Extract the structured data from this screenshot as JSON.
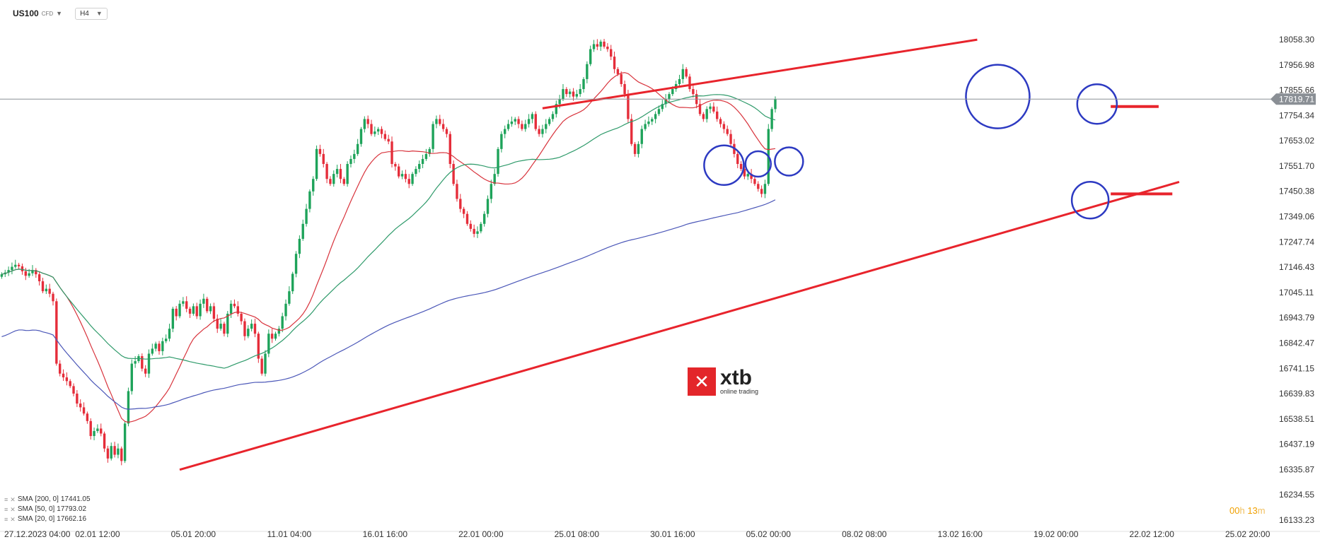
{
  "toolbar": {
    "symbol": "US100",
    "symbol_type": "CFD",
    "timeframe": "H4"
  },
  "legend": [
    {
      "name": "SMA",
      "params": "[200,  0]",
      "value": "17441.05"
    },
    {
      "name": "SMA",
      "params": "[50,  0]",
      "value": "17793.02"
    },
    {
      "name": "SMA",
      "params": "[20,  0]",
      "value": "17662.16"
    }
  ],
  "logo": {
    "name": "xtb",
    "tagline": "online trading"
  },
  "timer": {
    "hours": "00",
    "h_unit": "h",
    "minutes": "13",
    "m_unit": "m"
  },
  "colors": {
    "up": "#1ea35a",
    "down": "#e52d3a",
    "sma20": "#d8333c",
    "sma50": "#2e9a6a",
    "sma200": "#4b57b8",
    "trend": "#e8242c",
    "annot": "#2d3ac2",
    "price_tag": "#8a8f95"
  },
  "chart_data": {
    "type": "candlestick",
    "current_price": "17819.71",
    "current_price_value": 17819.71,
    "ylim": [
      16133.23,
      18058.3
    ],
    "y_ticks": [
      "18058.30",
      "17956.98",
      "17855.66",
      "17754.34",
      "17653.02",
      "17551.70",
      "17450.38",
      "17349.06",
      "17247.74",
      "17146.43",
      "17045.11",
      "16943.79",
      "16842.47",
      "16741.15",
      "16639.83",
      "16538.51",
      "16437.19",
      "16335.87",
      "16234.55",
      "16133.23"
    ],
    "y_tick_values": [
      18058.3,
      17956.98,
      17855.66,
      17754.34,
      17653.02,
      17551.7,
      17450.38,
      17349.06,
      17247.74,
      17146.43,
      17045.11,
      16943.79,
      16842.47,
      16741.15,
      16639.83,
      16538.51,
      16437.19,
      16335.87,
      16234.55,
      16133.23
    ],
    "x_ticks": [
      {
        "label": "27.12.2023  04:00",
        "i": 0
      },
      {
        "label": "02.01  12:00",
        "i": 28
      },
      {
        "label": "05.01  20:00",
        "i": 56
      },
      {
        "label": "11.01  04:00",
        "i": 84
      },
      {
        "label": "16.01  16:00",
        "i": 112
      },
      {
        "label": "22.01  00:00",
        "i": 140
      },
      {
        "label": "25.01  08:00",
        "i": 168
      },
      {
        "label": "30.01  16:00",
        "i": 196
      },
      {
        "label": "05.02  00:00",
        "i": 224
      },
      {
        "label": "08.02  08:00",
        "i": 252
      },
      {
        "label": "13.02  16:00",
        "i": 280
      },
      {
        "label": "19.02  00:00",
        "i": 308
      },
      {
        "label": "22.02  12:00",
        "i": 336
      },
      {
        "label": "25.02  20:00",
        "i": 364
      }
    ],
    "n_slots": 372,
    "closes": [
      17118,
      17125,
      17135,
      17148,
      17156,
      17150,
      17130,
      17112,
      17122,
      17135,
      17118,
      17090,
      17050,
      17060,
      17040,
      17010,
      16760,
      16720,
      16705,
      16690,
      16670,
      16640,
      16600,
      16585,
      16560,
      16530,
      16470,
      16490,
      16500,
      16480,
      16420,
      16380,
      16430,
      16395,
      16420,
      16370,
      16520,
      16650,
      16760,
      16770,
      16790,
      16740,
      16720,
      16800,
      16820,
      16840,
      16810,
      16850,
      16860,
      16900,
      16980,
      16950,
      17000,
      17010,
      16980,
      16960,
      16990,
      16950,
      17000,
      17020,
      16970,
      16990,
      16940,
      16900,
      16920,
      16880,
      16960,
      17000,
      16990,
      16960,
      16930,
      16870,
      16900,
      16920,
      16880,
      16780,
      16720,
      16800,
      16880,
      16860,
      16880,
      16900,
      16950,
      17000,
      17050,
      17120,
      17200,
      17260,
      17320,
      17380,
      17450,
      17500,
      17620,
      17600,
      17560,
      17500,
      17480,
      17520,
      17540,
      17500,
      17480,
      17560,
      17580,
      17600,
      17640,
      17700,
      17740,
      17720,
      17680,
      17690,
      17700,
      17680,
      17660,
      17650,
      17560,
      17550,
      17510,
      17520,
      17500,
      17480,
      17520,
      17540,
      17560,
      17580,
      17600,
      17620,
      17720,
      17740,
      17720,
      17700,
      17680,
      17560,
      17480,
      17420,
      17380,
      17360,
      17320,
      17300,
      17280,
      17290,
      17320,
      17360,
      17420,
      17480,
      17520,
      17620,
      17680,
      17700,
      17720,
      17730,
      17740,
      17720,
      17700,
      17720,
      17740,
      17760,
      17700,
      17680,
      17700,
      17720,
      17740,
      17760,
      17800,
      17820,
      17860,
      17840,
      17850,
      17830,
      17840,
      17860,
      17900,
      17960,
      18020,
      18040,
      18030,
      18050,
      18030,
      18020,
      17990,
      17940,
      17920,
      17880,
      17840,
      17740,
      17640,
      17600,
      17640,
      17700,
      17720,
      17730,
      17740,
      17760,
      17780,
      17800,
      17820,
      17840,
      17860,
      17880,
      17900,
      17940,
      17910,
      17860,
      17840,
      17800,
      17760,
      17740,
      17780,
      17790,
      17770,
      17740,
      17720,
      17700,
      17680,
      17640,
      17600,
      17560,
      17540,
      17510,
      17520,
      17500,
      17480,
      17460,
      17440,
      17480,
      17700,
      17780,
      17819.71
    ],
    "sma20_start": 0,
    "sma50_start": 0,
    "sma200_start": 0,
    "annotations": {
      "trend_upper": [
        {
          "i": 158,
          "v": 17783
        },
        {
          "i": 285,
          "v": 18058
        }
      ],
      "trend_lower": [
        {
          "i": 52,
          "v": 16335
        },
        {
          "i": 344,
          "v": 17488
        }
      ],
      "levels": [
        {
          "i1": 324,
          "i2": 338,
          "v": 17790
        },
        {
          "i1": 324,
          "i2": 342,
          "v": 17440
        }
      ],
      "circles": [
        {
          "i": 211,
          "v": 17555,
          "r": 28
        },
        {
          "i": 221,
          "v": 17560,
          "r": 18
        },
        {
          "i": 230,
          "v": 17570,
          "r": 20
        },
        {
          "i": 291,
          "v": 17830,
          "r": 45
        },
        {
          "i": 320,
          "v": 17800,
          "r": 28
        },
        {
          "i": 318,
          "v": 17415,
          "r": 26
        }
      ]
    }
  }
}
